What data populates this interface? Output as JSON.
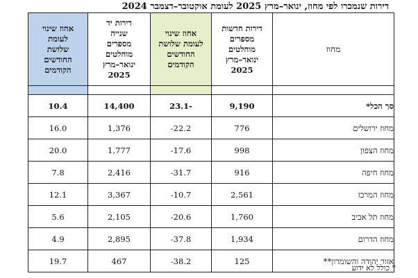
{
  "title": "דירות שנמכרו לפי מחוז, ינואר–מרץ 2025 לעומת אוקטובר–דצמבר 2024",
  "headers": {
    "region": "מחוז",
    "new_lines": [
      "דירות חדשות",
      "מספרים",
      "מוחלטים",
      "ינואר–מרץ",
      "2025"
    ],
    "change_new_lines": [
      "אחוז שינוי",
      "לעומת שלושת",
      "החודשים",
      "הקודמים"
    ],
    "used_lines": [
      "דירות יד",
      "שנייה",
      "מספרים",
      "מוחלטים",
      "ינואר–מרץ",
      "2025"
    ],
    "change_used_lines": [
      "אחוז שינוי",
      "לעומת",
      "שלושת",
      "החודשים",
      "הקודמים"
    ]
  },
  "rows": [
    {
      "region": "סך הכל*",
      "new": "9,190",
      "change_new": "-23.1",
      "used": "14,400",
      "change_used": "10.4"
    },
    {
      "region": "מחוז ירושלים",
      "new": "776",
      "change_new": "22.2-",
      "used": "1,376",
      "change_used": "16.0"
    },
    {
      "region": "מחוז הצפון",
      "new": "998",
      "change_new": "17.6-",
      "used": "1,777",
      "change_used": "20.0"
    },
    {
      "region": "מחוז חיפה",
      "new": "916",
      "change_new": "31.7-",
      "used": "2,416",
      "change_used": "7.8"
    },
    {
      "region": "מחוז המרכז",
      "new": "2,561",
      "change_new": "10.7-",
      "used": "3,367",
      "change_used": "12.1"
    },
    {
      "region": "מחוז תל אביב",
      "new": "1,760",
      "change_new": "20.6-",
      "used": "2,105",
      "change_used": "5.6"
    },
    {
      "region": "מחוז הדרום",
      "new": "1,934",
      "change_new": "37.8-",
      "used": "2,895",
      "change_used": "4.9"
    },
    {
      "region": "אזור יהודה והשומרון**",
      "new": "125",
      "change_new": "38.2-",
      "used": "467",
      "change_used": "19.7"
    }
  ],
  "footnote": "* כולל לא ידוע",
  "colors": {
    "green_header": "#e5f0ca",
    "blue_header": "#bdd3eb"
  }
}
